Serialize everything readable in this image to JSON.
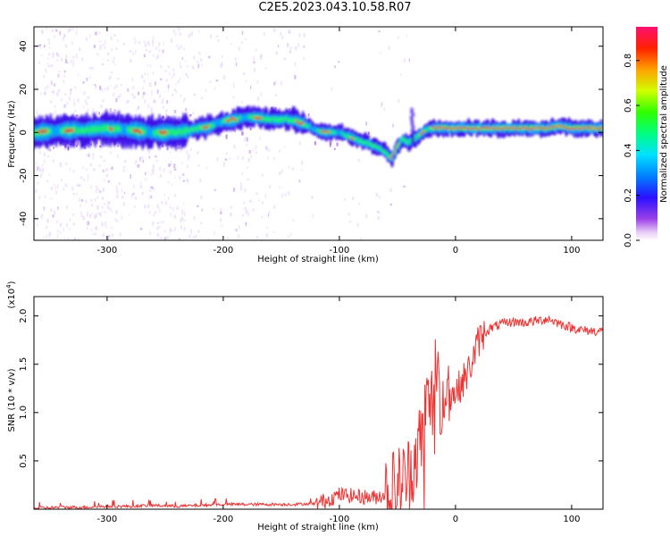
{
  "title": "C2E5.2023.043.10.58.R07",
  "chart_data": [
    {
      "type": "heatmap",
      "xlabel": "Height of straight line (km)",
      "ylabel": "Frequency (Hz)",
      "xlim": [
        -363,
        127
      ],
      "ylim": [
        -50,
        49
      ],
      "xticks": [
        -300,
        -200,
        -100,
        0,
        100
      ],
      "yticks": [
        -40,
        -20,
        0,
        20,
        40
      ],
      "frequency_track": {
        "x": [
          -360,
          -340,
          -320,
          -300,
          -280,
          -260,
          -240,
          -230,
          -220,
          -210,
          -200,
          -190,
          -180,
          -170,
          -160,
          -150,
          -140,
          -130,
          -120,
          -110,
          -100,
          -90,
          -80,
          -70,
          -60,
          -55,
          -50,
          -45,
          -40,
          -35,
          -30,
          -25,
          -20,
          -10,
          0,
          20,
          50,
          80,
          90,
          100,
          127
        ],
        "y": [
          0,
          1,
          1,
          2,
          1,
          0,
          0,
          1,
          2,
          3,
          5,
          6,
          7,
          7,
          6,
          6,
          6,
          4,
          1,
          0,
          0,
          -2,
          -4,
          -6,
          -9,
          -12,
          -7,
          -3,
          -5,
          -3,
          -1,
          1,
          2,
          2,
          2,
          2,
          2,
          2,
          3,
          2,
          2
        ]
      },
      "colorbar": {
        "label": "Normalized spectral amplitude",
        "ticks": [
          "0.0",
          "0.2",
          "0.4",
          "0.6",
          "0.8"
        ],
        "range": [
          0,
          0.95
        ]
      }
    },
    {
      "type": "line",
      "xlabel": "Height of straight line (km)",
      "ylabel": "SNR (10 * v/v)",
      "multiplier_label": "(x10",
      "multiplier_exp": "4",
      "multiplier_close": ")",
      "xlim": [
        -363,
        127
      ],
      "ylim": [
        0,
        2.2
      ],
      "xticks": [
        -300,
        -200,
        -100,
        0,
        100
      ],
      "yticks": [
        "0.5",
        "1.0",
        "1.5",
        "2.0"
      ],
      "series": [
        {
          "name": "SNR",
          "color": "#ee3333",
          "x": [
            -363,
            -340,
            -320,
            -300,
            -280,
            -260,
            -240,
            -220,
            -200,
            -180,
            -160,
            -140,
            -120,
            -110,
            -100,
            -90,
            -80,
            -70,
            -60,
            -50,
            -40,
            -35,
            -30,
            -25,
            -20,
            -15,
            -10,
            -5,
            0,
            5,
            10,
            15,
            20,
            25,
            30,
            40,
            50,
            60,
            70,
            80,
            90,
            100,
            110,
            127
          ],
          "values": [
            0.01,
            0.02,
            0.02,
            0.03,
            0.03,
            0.04,
            0.03,
            0.04,
            0.05,
            0.05,
            0.05,
            0.05,
            0.06,
            0.1,
            0.15,
            0.14,
            0.13,
            0.12,
            0.16,
            0.22,
            0.35,
            0.55,
            0.7,
            1.05,
            1.1,
            1.2,
            1.15,
            1.2,
            1.2,
            1.3,
            1.4,
            1.55,
            1.75,
            1.82,
            1.87,
            1.92,
            1.94,
            1.93,
            1.95,
            1.97,
            1.92,
            1.88,
            1.85,
            1.84
          ]
        }
      ]
    }
  ]
}
